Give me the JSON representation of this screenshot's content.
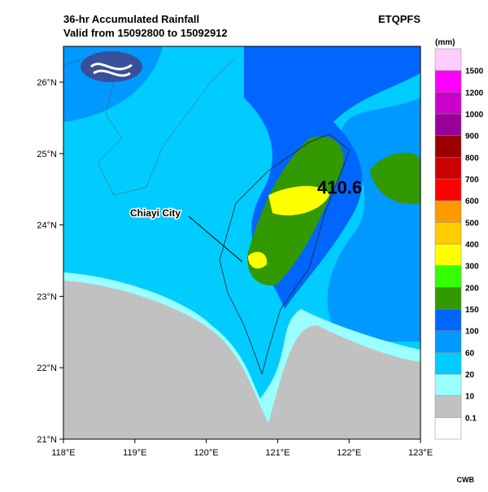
{
  "header": {
    "title": "36-hr Accumulated Rainfall",
    "subtitle": "Valid from 15092800 to 15092912",
    "product": "ETQPFS"
  },
  "map": {
    "x_labels": [
      "118°E",
      "119°E",
      "120°E",
      "121°E",
      "122°E",
      "123°E"
    ],
    "y_labels": [
      "21°N",
      "22°N",
      "23°N",
      "24°N",
      "25°N",
      "26°N"
    ],
    "annotation": "Chiayi City",
    "max_value": "410.6"
  },
  "legend": {
    "unit": "(mm)",
    "levels": [
      "0.1",
      "10",
      "20",
      "60",
      "100",
      "150",
      "200",
      "300",
      "400",
      "500",
      "600",
      "700",
      "800",
      "900",
      "1000",
      "1200",
      "1500"
    ]
  },
  "footer": "CWB"
}
